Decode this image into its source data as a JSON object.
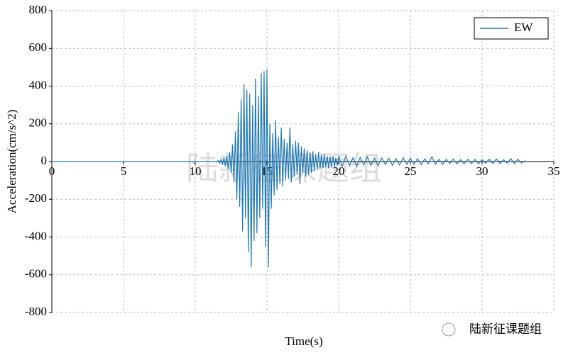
{
  "chart_data": {
    "type": "line",
    "xlabel": "Time(s)",
    "ylabel": "Acceleration(cm/s^2)",
    "watermark": "陆新征课题组",
    "footer": "陆新征课题组",
    "xlim": [
      0,
      35
    ],
    "xticks": [
      0,
      5,
      10,
      15,
      20,
      25,
      30,
      35
    ],
    "ylim": [
      -800,
      800
    ],
    "yticks": [
      -800,
      -600,
      -400,
      -200,
      0,
      200,
      400,
      600,
      800
    ],
    "grid": true,
    "legend": "upper right",
    "x": [
      0,
      11.5,
      11.6,
      11.7,
      11.8,
      11.9,
      12.0,
      12.1,
      12.2,
      12.3,
      12.4,
      12.5,
      12.6,
      12.7,
      12.8,
      12.9,
      13.0,
      13.1,
      13.2,
      13.3,
      13.4,
      13.5,
      13.6,
      13.7,
      13.8,
      13.9,
      14.0,
      14.1,
      14.2,
      14.3,
      14.4,
      14.5,
      14.6,
      14.7,
      14.8,
      14.9,
      15.0,
      15.1,
      15.2,
      15.3,
      15.4,
      15.5,
      15.6,
      15.7,
      15.8,
      15.9,
      16.0,
      16.1,
      16.2,
      16.3,
      16.4,
      16.5,
      16.6,
      16.7,
      16.8,
      16.9,
      17.0,
      17.1,
      17.2,
      17.3,
      17.4,
      17.5,
      17.6,
      17.7,
      17.8,
      17.9,
      18.0,
      18.1,
      18.2,
      18.3,
      18.4,
      18.5,
      18.6,
      18.7,
      18.8,
      18.9,
      19.0,
      19.1,
      19.2,
      19.3,
      19.4,
      19.5,
      19.6,
      19.7,
      19.8,
      19.9,
      20.0,
      20.25,
      20.5,
      20.75,
      21.0,
      21.25,
      21.5,
      21.75,
      22.0,
      22.25,
      22.5,
      22.75,
      23.0,
      23.25,
      23.5,
      23.75,
      24.0,
      24.25,
      24.5,
      24.75,
      25.0,
      25.25,
      25.5,
      25.75,
      26.0,
      26.25,
      26.5,
      26.75,
      27.0,
      27.25,
      27.5,
      27.75,
      28.0,
      28.25,
      28.5,
      28.75,
      29.0,
      29.25,
      29.5,
      29.75,
      30.0,
      30.25,
      30.5,
      30.75,
      31.0,
      31.25,
      31.5,
      31.75,
      32.0,
      32.25,
      32.5,
      32.75,
      33.0
    ],
    "series": [
      {
        "name": "EW",
        "color": "#1f77b4",
        "values": [
          0,
          0,
          5,
          -8,
          12,
          -15,
          20,
          -25,
          30,
          -40,
          50,
          -60,
          90,
          -110,
          160,
          -200,
          260,
          -240,
          330,
          -370,
          410,
          -300,
          380,
          -480,
          360,
          -560,
          300,
          -420,
          440,
          -380,
          350,
          -300,
          470,
          -250,
          480,
          -450,
          490,
          -560,
          200,
          -250,
          150,
          -180,
          220,
          -150,
          130,
          -120,
          180,
          -130,
          120,
          -100,
          100,
          -90,
          180,
          -110,
          90,
          -80,
          110,
          -70,
          100,
          -120,
          80,
          -60,
          70,
          -80,
          60,
          -70,
          50,
          -60,
          55,
          -50,
          40,
          -45,
          50,
          -40,
          35,
          -35,
          40,
          -30,
          30,
          -35,
          25,
          -30,
          30,
          -25,
          20,
          -20,
          25,
          -25,
          30,
          -22,
          20,
          -25,
          22,
          -18,
          25,
          -20,
          18,
          -22,
          20,
          -15,
          18,
          -20,
          15,
          -18,
          20,
          -15,
          18,
          -14,
          15,
          -16,
          14,
          -12,
          25,
          -14,
          12,
          -15,
          12,
          -10,
          14,
          -12,
          10,
          -12,
          12,
          -10,
          11,
          -12,
          10,
          -9,
          12,
          -10,
          14,
          -11,
          10,
          -9,
          15,
          -10,
          12,
          -8,
          5
        ]
      }
    ]
  }
}
